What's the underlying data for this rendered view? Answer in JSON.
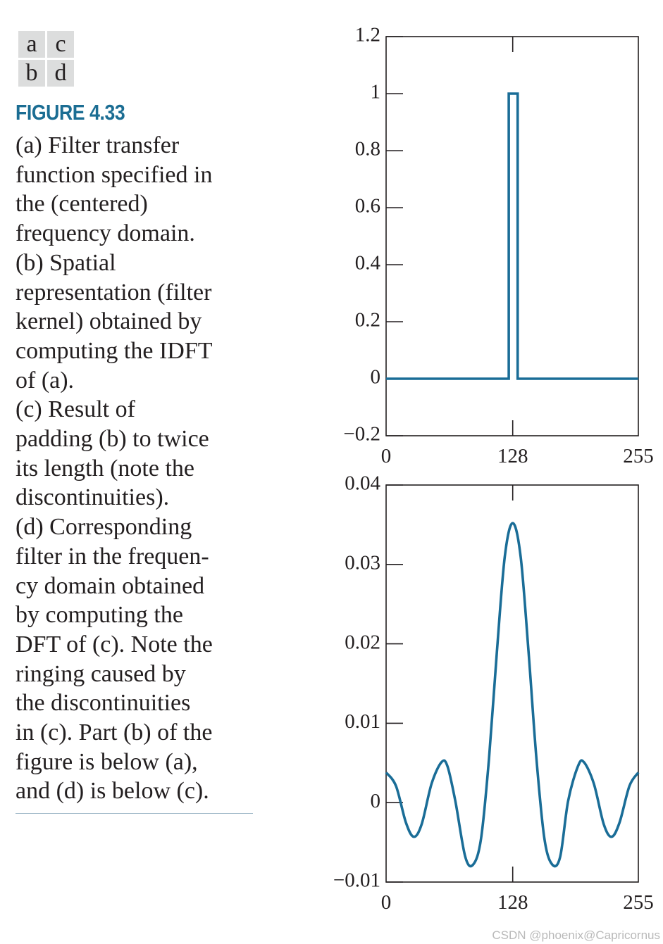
{
  "figure": {
    "panel_labels": [
      "a",
      "c",
      "b",
      "d"
    ],
    "title": "FIGURE 4.33",
    "caption_lines": [
      "(a) Filter transfer",
      "function specified in",
      "the (centered)",
      "frequency domain.",
      "(b) Spatial",
      "representation (filter",
      "kernel) obtained by",
      "computing the IDFT",
      "of (a).",
      "(c) Result of",
      "padding (b) to twice",
      "its length (note the",
      "discontinuities).",
      "(d) Corresponding",
      "filter in the frequen-",
      "cy domain obtained",
      "by computing the",
      "DFT of (c). Note the",
      "ringing caused by",
      "the discontinuities",
      "in (c). Part (b) of the",
      "figure is below (a),",
      "and (d) is below (c)."
    ]
  },
  "chart_data": [
    {
      "type": "line",
      "panel": "c",
      "title": "",
      "xlabel": "",
      "ylabel": "",
      "xlim": [
        0,
        255
      ],
      "ylim": [
        -0.2,
        1.2
      ],
      "xticks": [
        0,
        128,
        255
      ],
      "xtick_labels": [
        "0",
        "128",
        "255"
      ],
      "yticks": [
        -0.2,
        0,
        0.2,
        0.4,
        0.6,
        0.8,
        1.0,
        1.2
      ],
      "ytick_labels": [
        "−0.2",
        "0",
        "0.2",
        "0.4",
        "0.6",
        "0.8",
        "1",
        "1.2"
      ],
      "grid": false,
      "color": "#1a6d97",
      "series": [
        {
          "x": [
            0,
            124,
            124,
            133,
            133,
            255
          ],
          "y": [
            0,
            0,
            1,
            1,
            0,
            0
          ]
        }
      ]
    },
    {
      "type": "line",
      "panel": "d",
      "title": "",
      "xlabel": "",
      "ylabel": "",
      "xlim": [
        0,
        255
      ],
      "ylim": [
        -0.01,
        0.04
      ],
      "xticks": [
        0,
        128,
        255
      ],
      "xtick_labels": [
        "0",
        "128",
        "255"
      ],
      "yticks": [
        -0.01,
        0,
        0.01,
        0.02,
        0.03,
        0.04
      ],
      "ytick_labels": [
        "−0.01",
        "0",
        "0.01",
        "0.02",
        "0.03",
        "0.04"
      ],
      "grid": false,
      "color": "#1a6d97",
      "series": [
        {
          "x": [
            0,
            10,
            20,
            28,
            36,
            46,
            56,
            62,
            70,
            80,
            88,
            96,
            104,
            112,
            120,
            128,
            136,
            144,
            152,
            160,
            168,
            176,
            184,
            194,
            200,
            210,
            220,
            228,
            236,
            246,
            255
          ],
          "y": [
            0.0038,
            0.0021,
            -0.0025,
            -0.0043,
            -0.0027,
            0.0024,
            0.0051,
            0.0046,
            0.0002,
            -0.0068,
            -0.0078,
            -0.0045,
            0.0055,
            0.019,
            0.031,
            0.0352,
            0.031,
            0.019,
            0.0055,
            -0.0045,
            -0.0078,
            -0.0068,
            0.0002,
            0.0046,
            0.0051,
            0.0024,
            -0.0027,
            -0.0043,
            -0.0025,
            0.0021,
            0.0038
          ]
        }
      ]
    }
  ],
  "watermark": "CSDN @phoenix@Capricornus"
}
